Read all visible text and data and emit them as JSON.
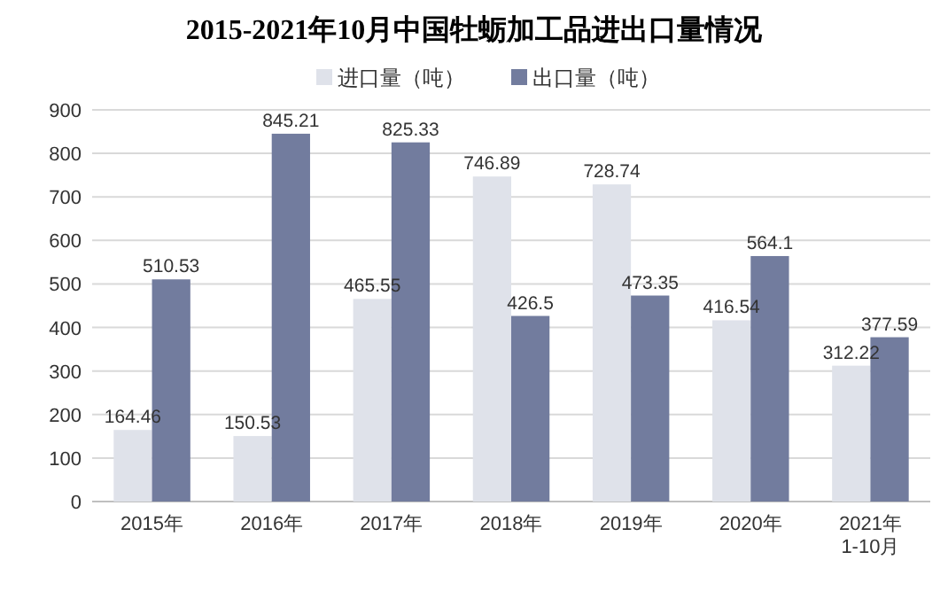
{
  "chart_data": {
    "type": "bar",
    "title": "2015-2021年10月中国牡蛎加工品进出口量情况",
    "categories": [
      "2015年",
      "2016年",
      "2017年",
      "2018年",
      "2019年",
      "2020年",
      "2021年\n1-10月"
    ],
    "series": [
      {
        "name": "进口量（吨）",
        "color": "#dfe2ea",
        "values": [
          164.46,
          150.53,
          465.55,
          746.89,
          728.74,
          416.54,
          312.22
        ]
      },
      {
        "name": "出口量（吨）",
        "color": "#727c9e",
        "values": [
          510.53,
          845.21,
          825.33,
          426.5,
          473.35,
          564.1,
          377.59
        ]
      }
    ],
    "ylim": [
      0,
      900
    ],
    "yticks": [
      0,
      100,
      200,
      300,
      400,
      500,
      600,
      700,
      800,
      900
    ],
    "grid": "y",
    "legend": "top",
    "data_labels": true
  }
}
